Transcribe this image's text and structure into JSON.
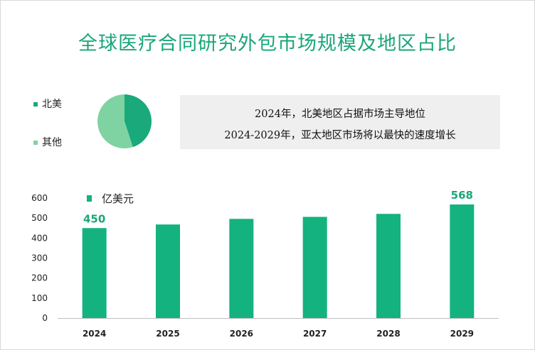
{
  "title": "全球医疗合同研究外包市场规模及地区占比",
  "callout": {
    "line1": "2024年，北美地区占据市场主导地位",
    "line2": "2024-2029年，亚太地区市场将以最快的速度增长"
  },
  "colors": {
    "title": "#1aa67a",
    "bar": "#13b27f",
    "pie_main": "#19a97b",
    "pie_other": "#7fd3a3",
    "label": "#1aa67a"
  },
  "chart_data": [
    {
      "type": "pie",
      "title": "",
      "slices": [
        {
          "name": "北美",
          "value": 45
        },
        {
          "name": "其他",
          "value": 55
        }
      ]
    },
    {
      "type": "bar",
      "title": "",
      "legend": "亿美元",
      "categories": [
        "2024",
        "2025",
        "2026",
        "2027",
        "2028",
        "2029"
      ],
      "values": [
        450,
        468,
        496,
        506,
        521,
        568
      ],
      "value_labels": [
        {
          "index": 0,
          "text": "450"
        },
        {
          "index": 5,
          "text": "568"
        }
      ],
      "ylim": [
        0,
        600
      ],
      "yticks": [
        "0",
        "100",
        "200",
        "300",
        "400",
        "500",
        "600"
      ],
      "xlabel": "",
      "ylabel": ""
    }
  ]
}
